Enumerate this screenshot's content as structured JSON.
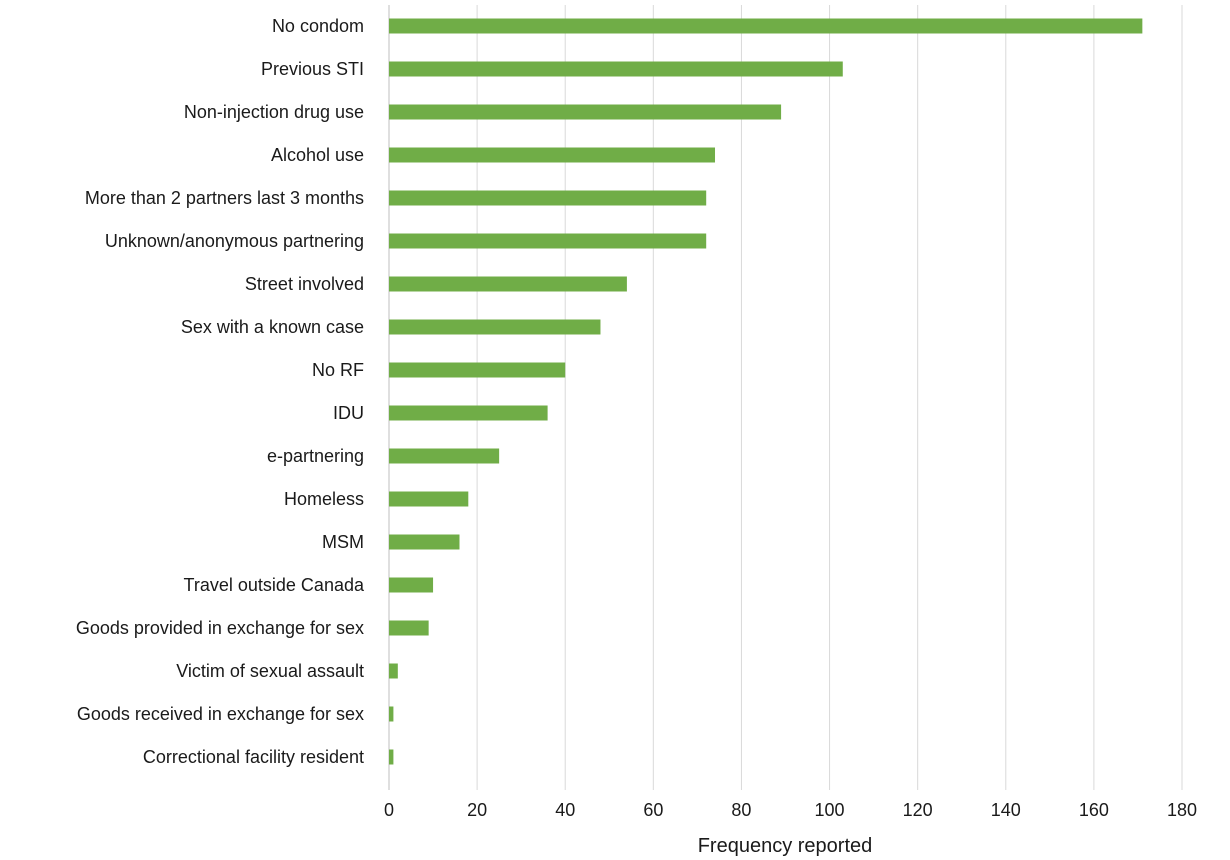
{
  "chart_data": {
    "type": "bar",
    "orientation": "horizontal",
    "title": "",
    "xlabel": "Frequency reported",
    "ylabel": "",
    "xlim": [
      0,
      180
    ],
    "x_ticks": [
      0,
      20,
      40,
      60,
      80,
      100,
      120,
      140,
      160,
      180
    ],
    "grid": "vertical",
    "bar_color": "#70ad47",
    "categories": [
      "No condom",
      "Previous STI",
      "Non-injection drug use",
      "Alcohol use",
      "More than 2 partners last 3 months",
      "Unknown/anonymous partnering",
      "Street involved",
      "Sex with a known case",
      "No RF",
      "IDU",
      "e-partnering",
      "Homeless",
      "MSM",
      "Travel outside Canada",
      "Goods provided in exchange for sex",
      "Victim of sexual assault",
      "Goods received in exchange for sex",
      "Correctional facility resident"
    ],
    "values": [
      171,
      103,
      89,
      74,
      72,
      72,
      54,
      48,
      40,
      36,
      25,
      18,
      16,
      10,
      9,
      2,
      1,
      1
    ]
  }
}
